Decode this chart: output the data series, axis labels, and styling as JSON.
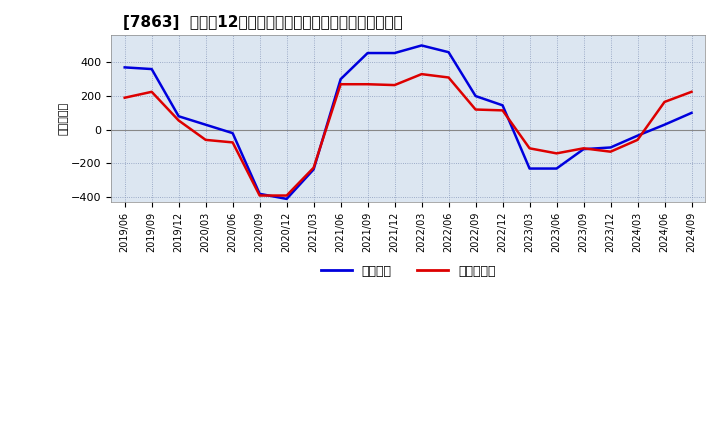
{
  "title": "[7863]  利益の12か月移動合計の対前年同期増減額の推移",
  "ylabel": "（百万円）",
  "ylim": [
    -430,
    560
  ],
  "yticks": [
    -400,
    -200,
    0,
    200,
    400
  ],
  "line1_label": "経常利益",
  "line1_color": "#0000DD",
  "line2_label": "当期純利益",
  "line2_color": "#DD0000",
  "background_color": "#dce6f1",
  "grid_color": "#aaaacc",
  "dates": [
    "2019/06",
    "2019/09",
    "2019/12",
    "2020/03",
    "2020/06",
    "2020/09",
    "2020/12",
    "2021/03",
    "2021/06",
    "2021/09",
    "2021/12",
    "2022/03",
    "2022/06",
    "2022/09",
    "2022/12",
    "2023/03",
    "2023/06",
    "2023/09",
    "2023/12",
    "2024/03",
    "2024/06",
    "2024/09"
  ],
  "line1_values": [
    370,
    360,
    80,
    30,
    -20,
    -380,
    -410,
    -235,
    300,
    455,
    455,
    500,
    460,
    200,
    145,
    -230,
    -230,
    -115,
    -105,
    -35,
    30,
    100
  ],
  "line2_values": [
    190,
    225,
    55,
    -60,
    -75,
    -390,
    -390,
    -225,
    270,
    270,
    265,
    330,
    310,
    120,
    115,
    -110,
    -140,
    -110,
    -130,
    -60,
    165,
    225
  ]
}
